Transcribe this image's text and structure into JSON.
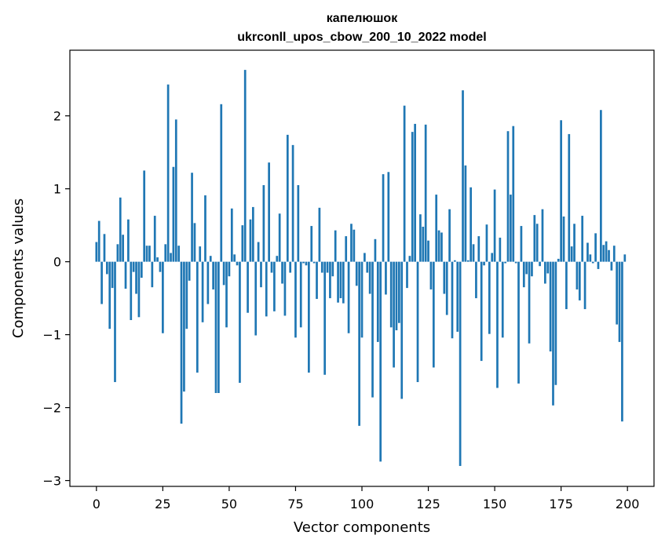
{
  "chart_data": {
    "type": "bar",
    "title_line1": "капелюшок",
    "title_line2": "ukrconll_upos_cbow_200_10_2022 model",
    "xlabel": "Vector components",
    "ylabel": "Components values",
    "xlim": [
      -10,
      210
    ],
    "ylim": [
      -3.08,
      2.9
    ],
    "xticks": [
      0,
      25,
      50,
      75,
      100,
      125,
      150,
      175,
      200
    ],
    "yticks": [
      -3,
      -2,
      -1,
      0,
      1,
      2
    ],
    "ytick_labels": [
      "−3",
      "−2",
      "−1",
      "0",
      "1",
      "2"
    ],
    "bar_color": "#1f77b4",
    "values": [
      0.27,
      0.56,
      -0.58,
      0.38,
      -0.17,
      -0.92,
      -0.36,
      -1.65,
      0.24,
      0.88,
      0.37,
      -0.37,
      0.58,
      -0.8,
      -0.14,
      -0.44,
      -0.76,
      -0.22,
      1.25,
      0.22,
      0.22,
      -0.35,
      0.63,
      0.06,
      -0.14,
      -0.98,
      0.24,
      2.43,
      0.12,
      1.3,
      1.95,
      0.22,
      -2.22,
      -1.78,
      -0.92,
      -0.26,
      1.22,
      0.53,
      -1.52,
      0.21,
      -0.83,
      0.91,
      -0.58,
      0.08,
      -0.38,
      -1.8,
      -1.8,
      2.16,
      -0.32,
      -0.9,
      -0.2,
      0.73,
      0.1,
      -0.05,
      -1.66,
      0.5,
      2.63,
      -0.7,
      0.58,
      0.75,
      -1.01,
      0.27,
      -0.35,
      1.05,
      -0.75,
      1.36,
      -0.15,
      -0.68,
      0.08,
      0.66,
      -0.3,
      -0.74,
      1.74,
      -0.15,
      1.6,
      -1.04,
      1.05,
      -0.9,
      -0.02,
      -0.05,
      -1.52,
      0.49,
      -0.02,
      -0.51,
      0.74,
      -0.15,
      -1.55,
      -0.15,
      -0.5,
      -0.2,
      0.43,
      -0.56,
      -0.5,
      -0.57,
      0.35,
      -0.98,
      0.52,
      0.44,
      -0.33,
      -2.25,
      -1.04,
      0.12,
      -0.15,
      -0.44,
      -1.86,
      0.31,
      -1.1,
      -2.74,
      1.2,
      -0.45,
      1.23,
      -0.9,
      -1.45,
      -0.94,
      -0.84,
      -1.88,
      2.14,
      -0.36,
      0.08,
      1.78,
      1.89,
      -1.65,
      0.65,
      0.48,
      1.88,
      0.29,
      -0.38,
      -1.45,
      0.92,
      0.43,
      0.4,
      -0.44,
      -0.73,
      0.72,
      -1.05,
      0.02,
      -0.96,
      -2.8,
      2.35,
      1.32,
      0.02,
      1.02,
      0.24,
      -0.5,
      0.35,
      -1.36,
      -0.05,
      0.51,
      -0.99,
      0.12,
      0.99,
      -1.73,
      0.33,
      -1.04,
      -0.02,
      1.79,
      0.92,
      1.86,
      -0.02,
      -1.67,
      0.49,
      -0.35,
      -0.17,
      -1.12,
      -0.2,
      0.64,
      0.52,
      -0.06,
      0.72,
      -0.3,
      -0.16,
      -1.23,
      -1.97,
      -1.69,
      0.04,
      1.94,
      0.62,
      -0.65,
      1.75,
      0.21,
      0.52,
      -0.38,
      -0.53,
      0.63,
      -0.65,
      0.26,
      0.1,
      -0.02,
      0.39,
      -0.1,
      2.08,
      0.23,
      0.28,
      0.16,
      -0.12,
      0.22,
      -0.86,
      -1.1,
      -2.19,
      0.1
    ]
  }
}
